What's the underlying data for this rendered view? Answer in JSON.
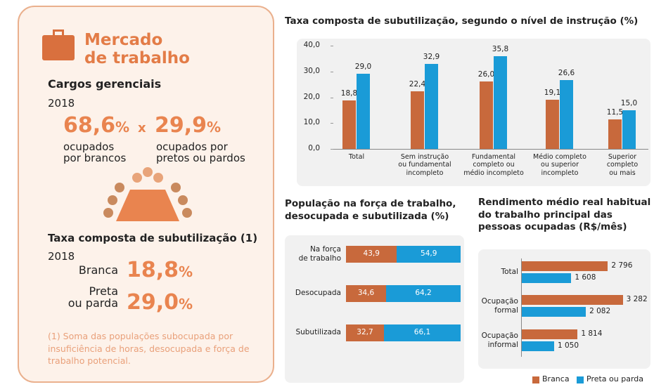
{
  "panel": {
    "title": "Mercado de trabalho",
    "section1": {
      "heading": "Cargos gerenciais",
      "year": "2018",
      "left": {
        "value": "68,6",
        "unit": "%",
        "caption": "ocupados\npor brancos"
      },
      "separator": "x",
      "right": {
        "value": "29,9",
        "unit": "%",
        "caption": "ocupados por\npretos ou pardos"
      }
    },
    "section2": {
      "heading": "Taxa composta de subutilização (1)",
      "year": "2018",
      "rows": [
        {
          "label": "Branca",
          "value": "18,8",
          "unit": "%"
        },
        {
          "label": "Preta\nou parda",
          "value": "29,0",
          "unit": "%"
        }
      ]
    },
    "footnote": "(1) Soma das populações subocupada por insuficiência de horas, desocupada e força de trabalho potencial."
  },
  "chart_data": [
    {
      "type": "bar",
      "title": "Taxa composta de subutilização, segundo o nível de instrução (%)",
      "categories": [
        "Total",
        "Sem instrução\nou fundamental\nincompleto",
        "Fundamental\ncompleto ou\nmédio incompleto",
        "Médio completo\nou superior\nincompleto",
        "Superior\ncompleto\nou mais"
      ],
      "series": [
        {
          "color": "#c8693c",
          "values": [
            18.8,
            22.4,
            26.0,
            19.1,
            11.5
          ],
          "value_labels": [
            "18,8",
            "22,4",
            "26,0",
            "19,1",
            "11,5"
          ]
        },
        {
          "color": "#1a9bd7",
          "values": [
            29.0,
            32.9,
            35.8,
            26.6,
            15.0
          ],
          "value_labels": [
            "29,0",
            "32,9",
            "35,8",
            "26,6",
            "15,0"
          ]
        }
      ],
      "ylim": [
        0,
        40
      ],
      "yticks": [
        {
          "value": 0,
          "label": "0,0"
        },
        {
          "value": 10,
          "label": "10,0"
        },
        {
          "value": 20,
          "label": "20,0"
        },
        {
          "value": 30,
          "label": "30,0"
        },
        {
          "value": 40,
          "label": "40,0"
        }
      ]
    },
    {
      "type": "stacked_barh",
      "title": "População na força de trabalho, desocupada e subutilizada (%)",
      "categories": [
        "Na força\nde trabalho",
        "Desocupada",
        "Subutilizada"
      ],
      "series": [
        {
          "color": "#c8693c",
          "values": [
            43.9,
            34.6,
            32.7
          ],
          "value_labels": [
            "43,9",
            "34,6",
            "32,7"
          ]
        },
        {
          "color": "#1a9bd7",
          "values": [
            54.9,
            64.2,
            66.1
          ],
          "value_labels": [
            "54,9",
            "64,2",
            "66,1"
          ]
        }
      ],
      "xlim": [
        0,
        100
      ]
    },
    {
      "type": "grouped_barh",
      "title": "Rendimento médio real habitual do trabalho principal das pessoas ocupadas (R$/mês)",
      "categories": [
        "Total",
        "Ocupação\nformal",
        "Ocupação\ninformal"
      ],
      "series": [
        {
          "name": "Branca",
          "color": "#c8693c",
          "values": [
            2796,
            3282,
            1814
          ],
          "value_labels": [
            "2 796",
            "3 282",
            "1 814"
          ]
        },
        {
          "name": "Preta ou parda",
          "color": "#1a9bd7",
          "values": [
            1608,
            2082,
            1050
          ],
          "value_labels": [
            "1 608",
            "2 082",
            "1 050"
          ]
        }
      ],
      "xlim": [
        0,
        4000
      ],
      "legend": "bottom"
    }
  ]
}
